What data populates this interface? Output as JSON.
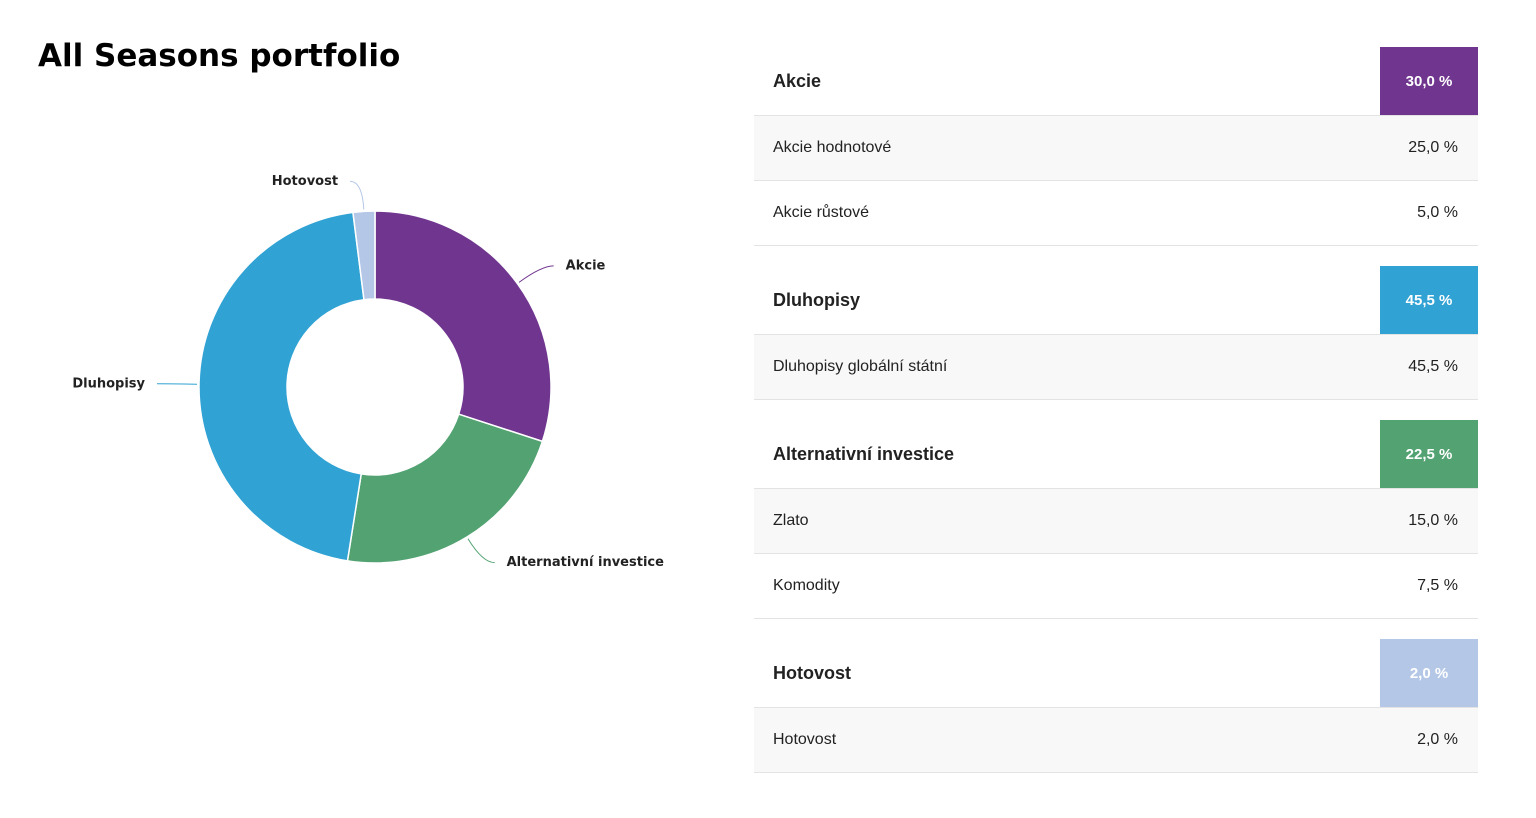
{
  "title": "All Seasons portfolio",
  "chart_data": {
    "type": "pie",
    "donut": true,
    "categories": [
      "Akcie",
      "Alternativní investice",
      "Dluhopisy",
      "Hotovost"
    ],
    "values": [
      30,
      22.5,
      45.5,
      2
    ],
    "colors": [
      "#70368f",
      "#52a272",
      "#30a2d3",
      "#b4c7e7"
    ]
  },
  "table": {
    "groups": [
      {
        "name": "Akcie",
        "value": "30,0 %",
        "color": "#70368f",
        "rows": [
          [
            "Akcie hodnotové",
            "25,0 %"
          ],
          [
            "Akcie růstové",
            "5,0 %"
          ]
        ]
      },
      {
        "name": "Dluhopisy",
        "value": "45,5 %",
        "color": "#30a2d3",
        "rows": [
          [
            "Dluhopisy globální státní",
            "45,5 %"
          ]
        ]
      },
      {
        "name": "Alternativní investice",
        "value": "22,5 %",
        "color": "#52a272",
        "rows": [
          [
            "Zlato",
            "15,0 %"
          ],
          [
            "Komodity",
            "7,5 %"
          ]
        ]
      },
      {
        "name": "Hotovost",
        "value": "2,0 %",
        "color": "#b4c7e7",
        "rows": [
          [
            "Hotovost",
            "2,0 %"
          ]
        ]
      }
    ]
  }
}
